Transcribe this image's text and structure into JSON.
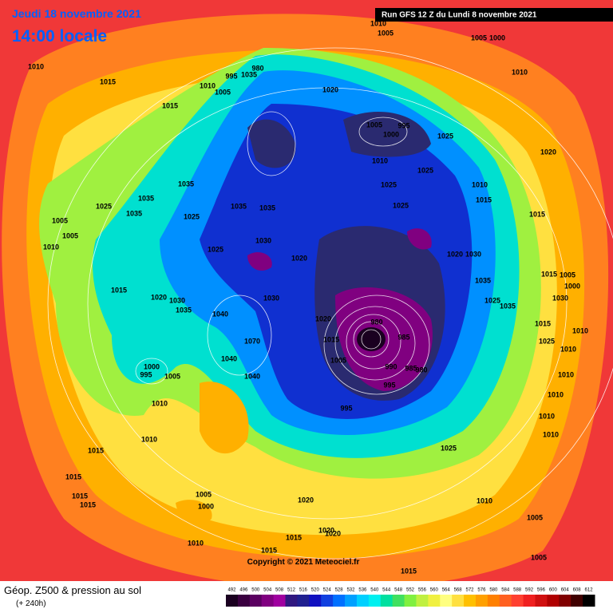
{
  "header": {
    "date": "Jeudi 18 novembre 2021",
    "time": "14:00 locale",
    "run": "Run GFS 12 Z du Lundi 8 novembre 2021"
  },
  "copyright": "Copyright © 2021 Meteociel.fr",
  "footer": {
    "title": "Géop. Z500 & pression au sol",
    "subtitle": "(+ 240h)"
  },
  "colorbar": {
    "ticks": [
      492,
      496,
      500,
      504,
      508,
      512,
      516,
      520,
      524,
      528,
      532,
      536,
      540,
      544,
      548,
      552,
      556,
      560,
      564,
      568,
      572,
      576,
      580,
      584,
      588,
      592,
      596,
      600,
      604,
      608,
      612
    ],
    "colors": [
      "#1a0020",
      "#3a0040",
      "#5a0060",
      "#800080",
      "#a000a0",
      "#301880",
      "#202090",
      "#1010c0",
      "#1040e0",
      "#0070ff",
      "#00a0ff",
      "#00d0ff",
      "#00f0f0",
      "#00e0a0",
      "#40e060",
      "#80f040",
      "#c0f040",
      "#f0f040",
      "#ffff80",
      "#ffe040",
      "#ffc000",
      "#ffa000",
      "#ff8000",
      "#ff6020",
      "#ff4030",
      "#f02020",
      "#d01010",
      "#b00000",
      "#800000",
      "#400000",
      "#000000"
    ]
  },
  "isobar_labels": [
    "1010",
    "1015",
    "1015",
    "980",
    "995",
    "1035",
    "1010",
    "1005",
    "1020",
    "1005",
    "995",
    "1000",
    "1025",
    "1010",
    "1025",
    "1035",
    "1025",
    "1035",
    "1035",
    "1025",
    "1035",
    "1035",
    "1025",
    "1025",
    "1010",
    "1015",
    "1020",
    "1015",
    "1005",
    "1005",
    "1010",
    "1030",
    "1025",
    "1020",
    "1020",
    "1030",
    "1035",
    "1015",
    "1020",
    "1030",
    "1035",
    "1040",
    "1030",
    "1020",
    "1015",
    "1005",
    "1000",
    "1030",
    "1025",
    "1035",
    "980",
    "985",
    "1015",
    "990",
    "985",
    "980",
    "995",
    "1005",
    "1040",
    "1040",
    "1070",
    "1000",
    "995",
    "1005",
    "1010",
    "995",
    "1015",
    "1010",
    "1025",
    "1010",
    "1010",
    "1010",
    "1010",
    "1010",
    "1015",
    "1025",
    "1010",
    "1015",
    "1015",
    "1015",
    "1005",
    "1000",
    "1020",
    "1010",
    "1005",
    "1020",
    "1020",
    "1010",
    "1015",
    "1015",
    "1015",
    "1005",
    "1010",
    "1010",
    "1005",
    "1005",
    "1000"
  ]
}
